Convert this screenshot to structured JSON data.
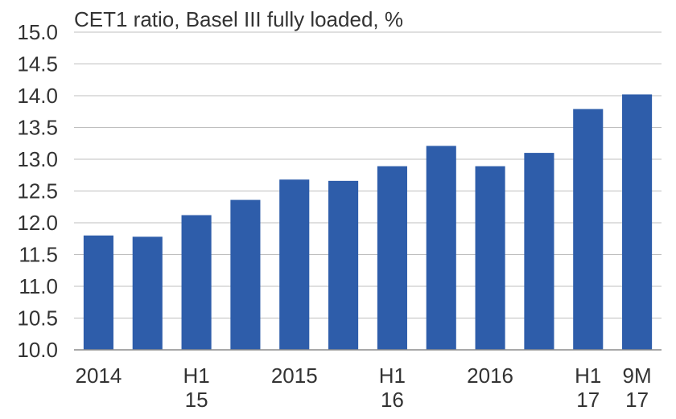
{
  "chart_data": {
    "type": "bar",
    "title": "CET1 ratio, Basel III fully loaded, %",
    "xlabel": "",
    "ylabel": "",
    "ylim": [
      10.0,
      15.0
    ],
    "yticks": [
      "10.0",
      "10.5",
      "11.0",
      "11.5",
      "12.0",
      "12.5",
      "13.0",
      "13.5",
      "14.0",
      "14.5",
      "15.0"
    ],
    "grid": true,
    "bar_color": "#2E5DAA",
    "grid_color": "#bfbfbf",
    "categories": [
      {
        "lines": [
          "2014"
        ]
      },
      {
        "lines": [
          ""
        ]
      },
      {
        "lines": [
          "H1",
          "15"
        ]
      },
      {
        "lines": [
          ""
        ]
      },
      {
        "lines": [
          "2015"
        ]
      },
      {
        "lines": [
          ""
        ]
      },
      {
        "lines": [
          "H1",
          "16"
        ]
      },
      {
        "lines": [
          ""
        ]
      },
      {
        "lines": [
          "2016"
        ]
      },
      {
        "lines": [
          ""
        ]
      },
      {
        "lines": [
          "H1",
          "17"
        ]
      },
      {
        "lines": [
          "9M",
          "17"
        ]
      }
    ],
    "values": [
      11.8,
      11.78,
      12.12,
      12.36,
      12.68,
      12.66,
      12.89,
      13.21,
      12.89,
      13.1,
      13.79,
      14.02
    ]
  }
}
